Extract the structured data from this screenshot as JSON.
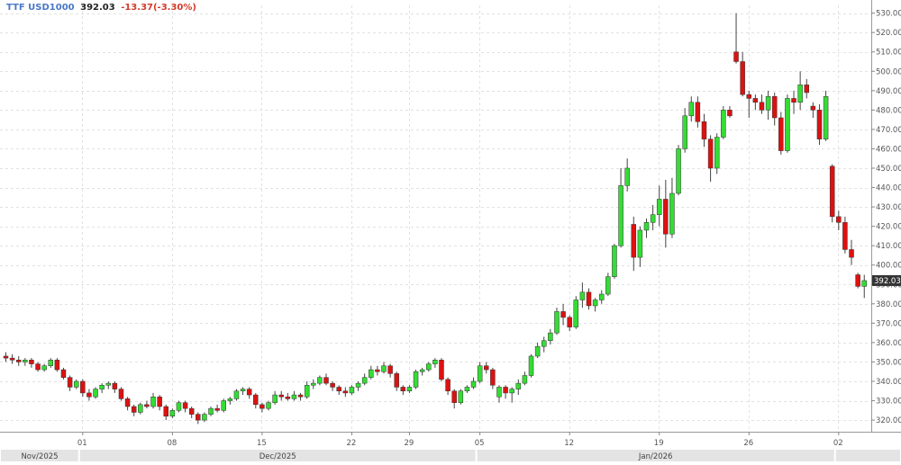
{
  "header": {
    "symbol": "TTF USD1000",
    "last": "392.03",
    "change": "-13.37(-3.30%)"
  },
  "colors": {
    "up": "#33dd33",
    "down": "#dd1111",
    "wick": "#444444",
    "grid": "#e2e2e2",
    "axis_text": "#555555",
    "price_tag_bg": "#333333",
    "timebar_bg": "#e4e4e4",
    "timebar_text": "#444444"
  },
  "chart_data": {
    "type": "candlestick",
    "title": "",
    "y_axis_position": "right",
    "ylim": [
      314,
      534
    ],
    "y_ticks": [
      320,
      330,
      340,
      350,
      360,
      370,
      380,
      390,
      400,
      410,
      420,
      430,
      440,
      450,
      460,
      470,
      480,
      490,
      500,
      510,
      520,
      530
    ],
    "y_tick_labels": [
      "320.00",
      "330.00",
      "340.00",
      "350.00",
      "360.00",
      "370.00",
      "380.00",
      "390.00",
      "400.00",
      "410.00",
      "420.00",
      "430.00",
      "440.00",
      "450.00",
      "460.00",
      "470.00",
      "480.00",
      "490.00",
      "500.00",
      "510.00",
      "520.00",
      "530.00"
    ],
    "last_price_label": "392.03",
    "x_tick_labels": [
      {
        "label": "01",
        "index": 12
      },
      {
        "label": "08",
        "index": 26
      },
      {
        "label": "15",
        "index": 40
      },
      {
        "label": "22",
        "index": 54
      },
      {
        "label": "29",
        "index": 63
      },
      {
        "label": "05",
        "index": 74
      },
      {
        "label": "12",
        "index": 88
      },
      {
        "label": "19",
        "index": 102
      },
      {
        "label": "26",
        "index": 116
      },
      {
        "label": "02",
        "index": 130
      }
    ],
    "period_labels": [
      {
        "label": "Nov/2025",
        "start": 0,
        "end": 11
      },
      {
        "label": "Dec/2025",
        "start": 12,
        "end": 73
      },
      {
        "label": "Jan/2026",
        "start": 74,
        "end": 129
      },
      {
        "label": "",
        "start": 130,
        "end": 134
      }
    ],
    "grid": true,
    "candles": [
      [
        353,
        355,
        350,
        352
      ],
      [
        352,
        354,
        349,
        351
      ],
      [
        351,
        353,
        348,
        350
      ],
      [
        350,
        352,
        348,
        351
      ],
      [
        351,
        352,
        347,
        349
      ],
      [
        349,
        350,
        345,
        346
      ],
      [
        346,
        349,
        345,
        348
      ],
      [
        348,
        352,
        347,
        351
      ],
      [
        351,
        352,
        345,
        346
      ],
      [
        346,
        347,
        341,
        342
      ],
      [
        342,
        343,
        335,
        337
      ],
      [
        337,
        341,
        336,
        340
      ],
      [
        340,
        341,
        332,
        334
      ],
      [
        334,
        336,
        330,
        332
      ],
      [
        332,
        337,
        331,
        336
      ],
      [
        336,
        339,
        334,
        338
      ],
      [
        338,
        340,
        336,
        339
      ],
      [
        339,
        340,
        334,
        336
      ],
      [
        336,
        337,
        330,
        331
      ],
      [
        331,
        332,
        325,
        327
      ],
      [
        327,
        328,
        322,
        324
      ],
      [
        324,
        329,
        323,
        328
      ],
      [
        328,
        330,
        326,
        327
      ],
      [
        327,
        334,
        326,
        332
      ],
      [
        332,
        333,
        325,
        327
      ],
      [
        327,
        328,
        320,
        322
      ],
      [
        322,
        326,
        321,
        325
      ],
      [
        325,
        330,
        324,
        329
      ],
      [
        329,
        330,
        324,
        326
      ],
      [
        326,
        327,
        321,
        323
      ],
      [
        323,
        324,
        318,
        320
      ],
      [
        320,
        324,
        319,
        323
      ],
      [
        323,
        327,
        322,
        326
      ],
      [
        326,
        328,
        324,
        325
      ],
      [
        325,
        331,
        324,
        330
      ],
      [
        330,
        332,
        328,
        331
      ],
      [
        331,
        336,
        330,
        335
      ],
      [
        335,
        337,
        333,
        336
      ],
      [
        336,
        337,
        331,
        333
      ],
      [
        333,
        334,
        326,
        328
      ],
      [
        328,
        329,
        324,
        326
      ],
      [
        326,
        330,
        325,
        329
      ],
      [
        329,
        335,
        328,
        333
      ],
      [
        333,
        335,
        330,
        332
      ],
      [
        332,
        334,
        330,
        331
      ],
      [
        331,
        335,
        330,
        333
      ],
      [
        333,
        334,
        330,
        332
      ],
      [
        332,
        340,
        331,
        338
      ],
      [
        338,
        341,
        336,
        339
      ],
      [
        339,
        343,
        338,
        342
      ],
      [
        342,
        344,
        338,
        339
      ],
      [
        339,
        340,
        335,
        337
      ],
      [
        337,
        338,
        333,
        335
      ],
      [
        335,
        337,
        332,
        334
      ],
      [
        334,
        338,
        333,
        337
      ],
      [
        337,
        340,
        335,
        339
      ],
      [
        339,
        344,
        338,
        342
      ],
      [
        342,
        348,
        341,
        346
      ],
      [
        346,
        348,
        343,
        345
      ],
      [
        345,
        350,
        344,
        348
      ],
      [
        348,
        349,
        342,
        344
      ],
      [
        344,
        345,
        335,
        337
      ],
      [
        337,
        338,
        333,
        335
      ],
      [
        335,
        338,
        334,
        337
      ],
      [
        337,
        346,
        336,
        345
      ],
      [
        345,
        347,
        343,
        346
      ],
      [
        346,
        350,
        345,
        349
      ],
      [
        349,
        352,
        347,
        351
      ],
      [
        351,
        352,
        340,
        341
      ],
      [
        341,
        342,
        333,
        335
      ],
      [
        335,
        336,
        326,
        329
      ],
      [
        329,
        336,
        328,
        335
      ],
      [
        335,
        338,
        334,
        337
      ],
      [
        337,
        342,
        336,
        340
      ],
      [
        340,
        350,
        339,
        348
      ],
      [
        348,
        350,
        344,
        346
      ],
      [
        346,
        347,
        336,
        338
      ],
      [
        332,
        338,
        329,
        337
      ],
      [
        337,
        338,
        331,
        334
      ],
      [
        334,
        337,
        329,
        336
      ],
      [
        336,
        341,
        333,
        339
      ],
      [
        339,
        345,
        338,
        343
      ],
      [
        343,
        354,
        342,
        353
      ],
      [
        353,
        360,
        352,
        358
      ],
      [
        358,
        363,
        355,
        361
      ],
      [
        361,
        367,
        359,
        365
      ],
      [
        365,
        378,
        364,
        376
      ],
      [
        376,
        380,
        369,
        373
      ],
      [
        373,
        374,
        366,
        368
      ],
      [
        368,
        384,
        367,
        382
      ],
      [
        382,
        391,
        378,
        386
      ],
      [
        386,
        388,
        377,
        379
      ],
      [
        379,
        383,
        376,
        382
      ],
      [
        382,
        387,
        380,
        385
      ],
      [
        385,
        396,
        384,
        394
      ],
      [
        394,
        411,
        393,
        410
      ],
      [
        410,
        450,
        409,
        441
      ],
      [
        441,
        455,
        438,
        450
      ],
      [
        421,
        425,
        397,
        404
      ],
      [
        404,
        420,
        399,
        418
      ],
      [
        418,
        424,
        414,
        422
      ],
      [
        422,
        431,
        418,
        426
      ],
      [
        426,
        441,
        420,
        434
      ],
      [
        434,
        444,
        409,
        416
      ],
      [
        416,
        445,
        414,
        437
      ],
      [
        437,
        462,
        436,
        460
      ],
      [
        460,
        481,
        458,
        477
      ],
      [
        477,
        487,
        474,
        484
      ],
      [
        484,
        487,
        471,
        474
      ],
      [
        474,
        478,
        461,
        465
      ],
      [
        465,
        467,
        443,
        450
      ],
      [
        450,
        468,
        447,
        466
      ],
      [
        466,
        482,
        465,
        480
      ],
      [
        480,
        482,
        476,
        477
      ],
      [
        510,
        530,
        504,
        505
      ],
      [
        505,
        510,
        487,
        488
      ],
      [
        488,
        490,
        476,
        486
      ],
      [
        486,
        488,
        480,
        484
      ],
      [
        484,
        488,
        478,
        480
      ],
      [
        480,
        490,
        475,
        487
      ],
      [
        487,
        489,
        472,
        476
      ],
      [
        476,
        479,
        457,
        459
      ],
      [
        459,
        488,
        458,
        486
      ],
      [
        486,
        490,
        478,
        484
      ],
      [
        484,
        500,
        480,
        493
      ],
      [
        493,
        496,
        486,
        489
      ],
      [
        482,
        484,
        476,
        480
      ],
      [
        480,
        483,
        462,
        465
      ],
      [
        465,
        490,
        464,
        487
      ],
      [
        451,
        452,
        422,
        425
      ],
      [
        425,
        428,
        418,
        422
      ],
      [
        422,
        425,
        406,
        408
      ],
      [
        408,
        413,
        400,
        404
      ],
      [
        395,
        396,
        388,
        389
      ],
      [
        389,
        395,
        383,
        392
      ]
    ]
  }
}
